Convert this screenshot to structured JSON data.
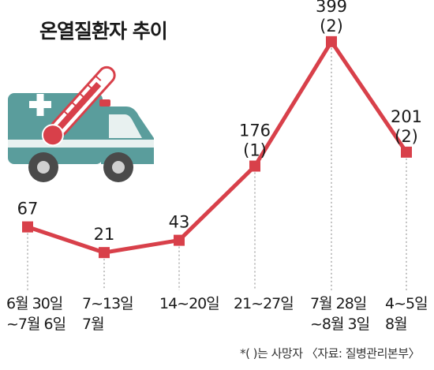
{
  "chart_data": {
    "type": "line",
    "title": "온열질환자 추이",
    "categories": [
      [
        "6월 30일",
        "~7월 6일"
      ],
      [
        "7~13일",
        "7월"
      ],
      [
        "14~20일",
        ""
      ],
      [
        "21~27일",
        ""
      ],
      [
        "7월 28일",
        "~8월 3일"
      ],
      [
        "4~5일",
        "8월"
      ]
    ],
    "values": [
      67,
      21,
      43,
      176,
      399,
      201
    ],
    "value_labels": [
      "67",
      "21",
      "43",
      "176",
      "399",
      "201"
    ],
    "deaths_labels": [
      "",
      "",
      "",
      "(1)",
      "(2)",
      "(2)"
    ],
    "ylim": [
      0,
      420
    ],
    "grid": false,
    "legend": "none",
    "note": "*( )는 사망자 〈자료: 질병관리본부〉",
    "colors": {
      "line": "#d8404a",
      "marker": "#d8404a",
      "guide": "#999999",
      "ambulance_body": "#5a9d9c",
      "ambulance_light": "#e8f1f0",
      "ambulance_cross": "#ffffff",
      "thermometer": "#d8404a"
    },
    "icons": [
      "ambulance-icon",
      "thermometer-icon"
    ]
  }
}
